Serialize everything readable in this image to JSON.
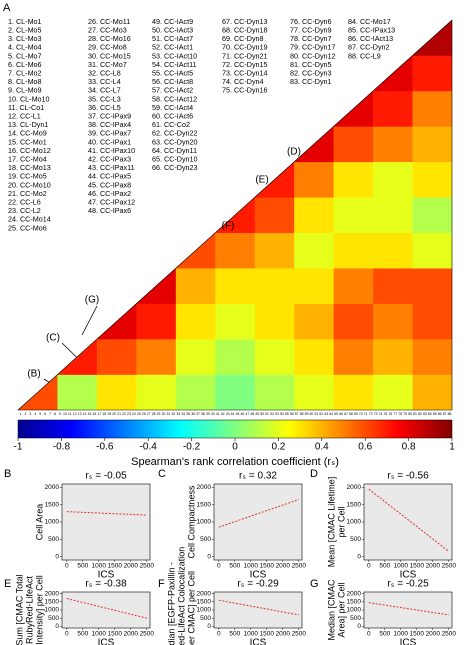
{
  "chart_data": [
    {
      "type": "heatmap",
      "panel": "A",
      "variables": [
        "1. CL-Mo1",
        "2. CL-Mo5",
        "3. CL-Mo3",
        "4. CL-Mo4",
        "5. CL-Mo7",
        "6. CL-Mo6",
        "7. CL-Mo2",
        "8. CL-Mo8",
        "9. CL-Mo9",
        "10. CL-Mo10",
        "11. CL-Co1",
        "12. CC-L1",
        "13. CL-Dyn1",
        "14. CC-Mo9",
        "15. CC-Mo1",
        "16. CC-Mo12",
        "17. CC-Mo4",
        "18. CC-Mo13",
        "19. CC-Mo5",
        "20. CC-Mo10",
        "21. CC-Mo2",
        "22. CC-L6",
        "23. CC-L2",
        "24. CC-Mo14",
        "25. CC-Mo6",
        "26. CC-Mo11",
        "27. CC-Mo3",
        "28. CC-Mo16",
        "29. CC-Mo8",
        "30. CC-Mo15",
        "31. CC-Mo7",
        "32. CC-L8",
        "33. CC-L4",
        "34. CC-L7",
        "35. CC-L3",
        "36. CC-L5",
        "37. CC-IPax9",
        "38. CC-IPax4",
        "39. CC-IPax7",
        "40. CC-IPax1",
        "41. CC-IPax10",
        "42. CC-IPax3",
        "43. CC-IPax11",
        "44. CC-IPax5",
        "45. CC-IPax8",
        "46. CC-IPax2",
        "47. CC-IPax12",
        "48. CC-IPax6",
        "49. CC-IAct9",
        "50. CC-IAct3",
        "51. CC-IAct7",
        "52. CC-IAct1",
        "53. CC-IAct10",
        "54. CC-IAct11",
        "55. CC-IAct5",
        "56. CC-IAct8",
        "57. CC-IAct2",
        "58. CC-IAct12",
        "59. CC-IAct4",
        "60. CC-IAct6",
        "61. CC-Co2",
        "62. CC-Dyn22",
        "63. CC-Dyn20",
        "64. CC-Dyn11",
        "65. CC-Dyn10",
        "66. CC-Dyn23",
        "67. CC-Dyn13",
        "68. CC-Dyn18",
        "69. CC-Dyn8",
        "70. CC-Dyn19",
        "71. CC-Dyn21",
        "72. CC-Dyn15",
        "73. CC-Dyn14",
        "74. CC-Dyn4",
        "75. CC-Dyn16",
        "76. CC-Dyn6",
        "77. CC-Dyn9",
        "78. CC-Dyn7",
        "79. CC-Dyn17",
        "80. CC-Dyn12",
        "81. CC-Dyn5",
        "82. CC-Dyn3",
        "83. CC-Dyn1",
        "84. CC-Mo17",
        "85. CC-IPax13",
        "86. CC-IAct13",
        "87. CC-Dyn2",
        "88. CC-L9"
      ],
      "columns": [
        25,
        23,
        18,
        9,
        8,
        5
      ],
      "ticks": [
        1,
        2,
        3,
        4,
        5,
        6,
        7,
        8,
        9,
        10,
        11,
        12,
        13,
        14,
        15,
        16,
        17,
        18,
        19,
        20,
        21,
        22,
        23,
        24,
        25,
        26,
        27,
        28,
        29,
        30,
        31,
        32,
        33,
        34,
        35,
        36,
        37,
        38,
        39,
        40,
        41,
        42,
        43,
        44,
        45,
        46,
        47,
        48,
        49,
        50,
        51,
        52,
        53,
        54,
        55,
        56,
        57,
        58,
        59,
        60,
        61,
        62,
        63,
        64,
        65,
        66,
        67,
        68,
        69,
        70,
        71,
        72,
        73,
        74,
        75,
        76,
        77,
        78,
        79,
        80,
        81,
        82,
        83,
        84,
        85,
        86,
        87,
        88
      ],
      "values": [
        [
          0.6
        ],
        [
          0.1,
          0.7
        ],
        [
          0.3,
          0.6,
          0.8
        ],
        [
          0.2,
          0.5,
          0.7,
          0.8
        ],
        [
          0.1,
          0.2,
          0.3,
          0.4,
          0.6
        ],
        [
          0.0,
          0.1,
          0.2,
          0.3,
          0.5,
          0.7
        ],
        [
          0.1,
          0.2,
          0.3,
          0.3,
          0.4,
          0.6,
          0.7
        ],
        [
          0.2,
          0.3,
          0.4,
          0.3,
          0.2,
          0.3,
          0.5,
          0.8
        ],
        [
          0.3,
          0.5,
          0.6,
          0.5,
          0.3,
          0.2,
          0.3,
          0.6,
          0.8
        ],
        [
          0.2,
          0.4,
          0.5,
          0.6,
          0.3,
          0.2,
          0.2,
          0.5,
          0.7,
          0.8
        ],
        [
          0.4,
          0.5,
          0.6,
          0.6,
          0.2,
          0.1,
          0.3,
          0.4,
          0.5,
          0.7,
          0.9
        ]
      ],
      "clim": [
        -1,
        1
      ],
      "colorbar_ticks": [
        -1,
        -0.8,
        -0.6,
        -0.4,
        -0.2,
        0,
        0.2,
        0.4,
        0.6,
        0.8,
        1
      ],
      "colorbar_label": "Spearman's rank correlation coefficient (rₛ)",
      "annotations": [
        "(B)",
        "(C)",
        "(G)",
        "(F)",
        "(E)",
        "(D)"
      ]
    },
    {
      "type": "scatter",
      "panel": "B",
      "title": "rₛ = -0.05",
      "xlabel": "ICS",
      "ylabel": [
        "Cell Area"
      ],
      "xlim": [
        -150,
        2600
      ],
      "ylim": [
        -100,
        2100
      ],
      "xticks": [
        0,
        500,
        1000,
        1500,
        2000,
        2500
      ],
      "yticks": [
        0,
        500,
        1000,
        1500,
        2000
      ],
      "trend": {
        "x": [
          0,
          2500
        ],
        "y": [
          1300,
          1200
        ]
      },
      "color": "#e03030"
    },
    {
      "type": "scatter",
      "panel": "C",
      "title": "rₛ = 0.32",
      "xlabel": "ICS",
      "ylabel": [
        "Cell Compactness"
      ],
      "xlim": [
        -150,
        2600
      ],
      "ylim": [
        -100,
        2100
      ],
      "xticks": [
        0,
        500,
        1000,
        1500,
        2000,
        2500
      ],
      "yticks": [
        0,
        500,
        1000,
        1500,
        2000
      ],
      "trend": {
        "x": [
          0,
          2500
        ],
        "y": [
          850,
          1650
        ]
      },
      "color": "#e03030"
    },
    {
      "type": "scatter",
      "panel": "D",
      "title": "rₛ = -0.56",
      "xlabel": "ICS",
      "ylabel": [
        "Mean [CMAC Lifetime]",
        "per Cell"
      ],
      "xlim": [
        -150,
        2600
      ],
      "ylim": [
        -100,
        2100
      ],
      "xticks": [
        0,
        500,
        1000,
        1500,
        2000,
        2500
      ],
      "yticks": [
        0,
        500,
        1000,
        1500,
        2000
      ],
      "trend": {
        "x": [
          0,
          2500
        ],
        "y": [
          1950,
          150
        ]
      },
      "color": "#e03030"
    },
    {
      "type": "scatter",
      "panel": "E",
      "title": "rₛ = -0.38",
      "xlabel": "ICS",
      "ylabel": [
        "Sum [CMAC Total",
        "RubyRed-LifeAct",
        "Intensity] per Cell"
      ],
      "xlim": [
        -150,
        2600
      ],
      "ylim": [
        -100,
        2100
      ],
      "xticks": [
        0,
        500,
        1000,
        1500,
        2000,
        2500
      ],
      "yticks": [
        0,
        500,
        1000,
        1500,
        2000
      ],
      "trend": {
        "x": [
          0,
          2500
        ],
        "y": [
          1700,
          500
        ]
      },
      "color": "#e03030"
    },
    {
      "type": "scatter",
      "panel": "F",
      "title": "rₛ = -0.29",
      "xlabel": "ICS",
      "ylabel": [
        "Median [EGFP-Paxillin -",
        "RubyRed-LifeAct Colocalization",
        "per CMAC] per Cell"
      ],
      "xlim": [
        -150,
        2600
      ],
      "ylim": [
        -100,
        2100
      ],
      "xticks": [
        0,
        500,
        1000,
        1500,
        2000,
        2500
      ],
      "yticks": [
        0,
        500,
        1000,
        1500,
        2000
      ],
      "trend": {
        "x": [
          0,
          2500
        ],
        "y": [
          1600,
          700
        ]
      },
      "color": "#e03030"
    },
    {
      "type": "scatter",
      "panel": "G",
      "title": "rₛ = -0.25",
      "xlabel": "ICS",
      "ylabel": [
        "Median [CMAC",
        "Area] per Cell"
      ],
      "xlim": [
        -150,
        2600
      ],
      "ylim": [
        -100,
        2100
      ],
      "xticks": [
        0,
        500,
        1000,
        1500,
        2000,
        2500
      ],
      "yticks": [
        0,
        500,
        1000,
        1500,
        2000
      ],
      "trend": {
        "x": [
          0,
          2500
        ],
        "y": [
          1450,
          700
        ]
      },
      "color": "#e03030"
    }
  ]
}
